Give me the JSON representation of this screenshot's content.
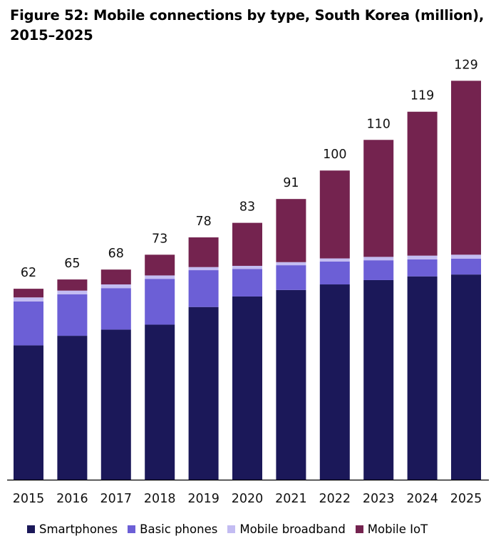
{
  "title_line1": "Figure 52: Mobile connections by type, South Korea (million),",
  "title_line2": "2015–2025",
  "chart_data": {
    "type": "bar",
    "stacked": true,
    "categories": [
      "2015",
      "2016",
      "2017",
      "2018",
      "2019",
      "2020",
      "2021",
      "2022",
      "2023",
      "2024",
      "2025"
    ],
    "totals": [
      "62",
      "65",
      "68",
      "73",
      "78",
      "83",
      "91",
      "100",
      "110",
      "119",
      "129"
    ],
    "series": [
      {
        "name": "Smartphones",
        "color": "#1b1859",
        "values": [
          43.4,
          46.5,
          48.5,
          50.1,
          55.8,
          59.2,
          61.3,
          63.1,
          64.5,
          65.7,
          66.3
        ]
      },
      {
        "name": "Basic phones",
        "color": "#6c5fd6",
        "values": [
          14.2,
          13.4,
          13.4,
          14.8,
          11.9,
          8.9,
          8.0,
          7.4,
          6.4,
          5.5,
          5.1
        ]
      },
      {
        "name": "Mobile broadband",
        "color": "#c3bcf2",
        "values": [
          1.3,
          1.2,
          1.2,
          1.1,
          1.0,
          1.0,
          1.0,
          1.0,
          1.1,
          1.2,
          1.3
        ]
      },
      {
        "name": "Mobile IoT",
        "color": "#74234f",
        "values": [
          2.8,
          3.6,
          4.8,
          6.7,
          9.6,
          13.9,
          20.4,
          28.4,
          37.8,
          46.5,
          56.2
        ]
      }
    ],
    "ylim": [
      0,
      155
    ],
    "grid": false,
    "legend_position": "bottom"
  }
}
